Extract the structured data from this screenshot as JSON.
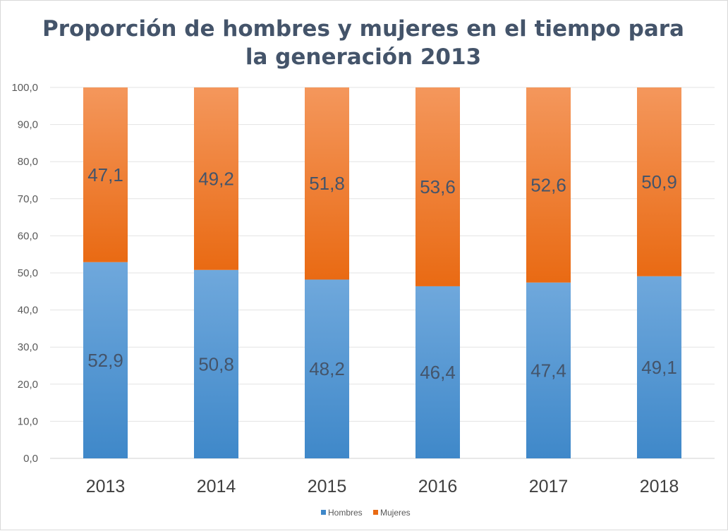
{
  "chart_data": {
    "type": "bar",
    "stacked": true,
    "title_lines": [
      "Proporción de hombres y mujeres en el tiempo para",
      "la generación 2013"
    ],
    "categories": [
      "2013",
      "2014",
      "2015",
      "2016",
      "2017",
      "2018"
    ],
    "series": [
      {
        "name": "Hombres",
        "values": [
          52.9,
          50.8,
          48.2,
          46.4,
          47.4,
          49.1
        ],
        "labels": [
          "52,9",
          "50,8",
          "48,2",
          "46,4",
          "47,4",
          "49,1"
        ],
        "color_top": "#6fa8dc",
        "color_bottom": "#3f88c9"
      },
      {
        "name": "Mujeres",
        "values": [
          47.1,
          49.2,
          51.8,
          53.6,
          52.6,
          50.9
        ],
        "labels": [
          "47,1",
          "49,2",
          "51,8",
          "53,6",
          "52,6",
          "50,9"
        ],
        "color_top": "#f4975c",
        "color_bottom": "#e96a13"
      }
    ],
    "ylim": [
      0,
      100
    ],
    "yticks": [
      0,
      10,
      20,
      30,
      40,
      50,
      60,
      70,
      80,
      90,
      100
    ],
    "ytick_labels": [
      "0,0",
      "10,0",
      "20,0",
      "30,0",
      "40,0",
      "50,0",
      "60,0",
      "70,0",
      "80,0",
      "90,0",
      "100,0"
    ],
    "grid": true,
    "legend_position": "bottom",
    "xlabel": "",
    "ylabel": ""
  }
}
